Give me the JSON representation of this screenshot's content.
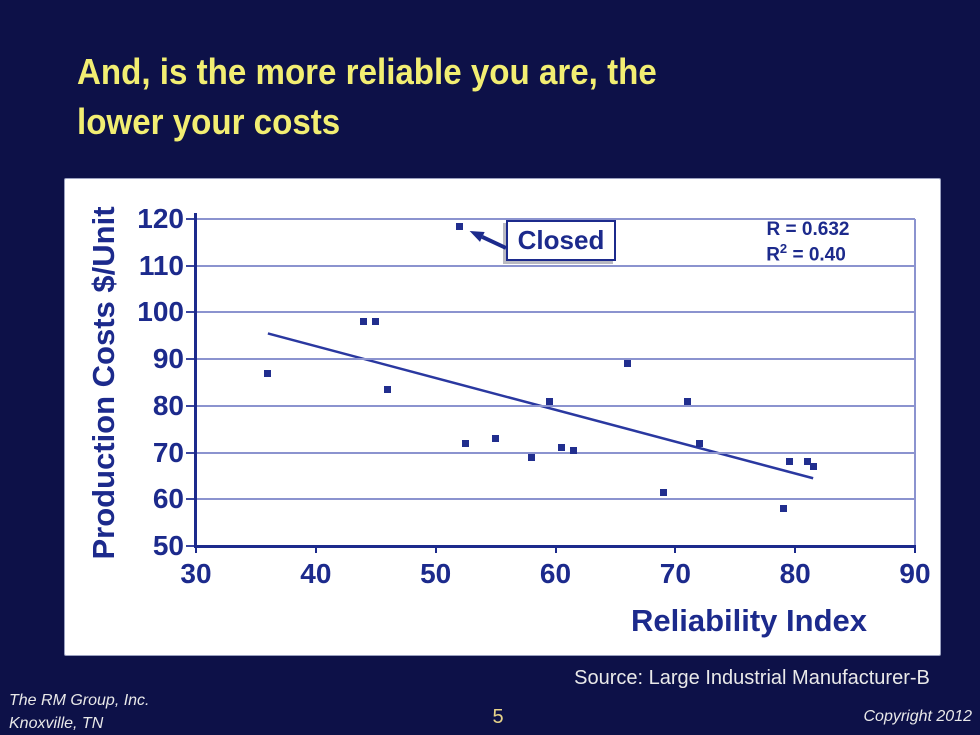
{
  "slide": {
    "title_line1": "And, is the more reliable you are, the",
    "title_line2": "lower your costs",
    "source_note": "Source: Large Industrial Manufacturer-B",
    "footer_left_line1": "The RM Group, Inc.",
    "footer_left_line2": "Knoxville, TN",
    "page_number": "5",
    "footer_right": "Copyright 2012"
  },
  "colors": {
    "background": "#0d1148",
    "title_yellow": "#f2ee72",
    "chart_navy": "#1c2a8c",
    "point_navy": "#212e8e",
    "gridline": "#8b93cf",
    "footer_white": "#e9e9e9",
    "page_number_gold": "#e7d489"
  },
  "chart_data": {
    "type": "scatter",
    "title": "",
    "xlabel": "Reliability Index",
    "ylabel": "Production Costs $/Unit",
    "xlim": [
      30,
      90
    ],
    "ylim": [
      50,
      120
    ],
    "x_ticks": [
      30,
      40,
      50,
      60,
      70,
      80,
      90
    ],
    "y_ticks": [
      50,
      60,
      70,
      80,
      90,
      100,
      110,
      120
    ],
    "grid": true,
    "legend": false,
    "points": [
      [
        36,
        87
      ],
      [
        44,
        98
      ],
      [
        45,
        98
      ],
      [
        46,
        83.5
      ],
      [
        52,
        118.5
      ],
      [
        52.5,
        72
      ],
      [
        55,
        73
      ],
      [
        58,
        69
      ],
      [
        59.5,
        81
      ],
      [
        60.5,
        71
      ],
      [
        61.5,
        70.5
      ],
      [
        66,
        89
      ],
      [
        69,
        61.5
      ],
      [
        71,
        81
      ],
      [
        72,
        72
      ],
      [
        79,
        58
      ],
      [
        79.5,
        68
      ],
      [
        81,
        68
      ],
      [
        81.5,
        67
      ]
    ],
    "trend": {
      "x1": 36,
      "y1": 95.5,
      "x2": 81.5,
      "y2": 64.5
    },
    "annotation": {
      "label": "Closed",
      "point": [
        52,
        118.5
      ]
    },
    "r_label": "R = 0.632",
    "r2_base": "R",
    "r2_sup": "2",
    "r2_rest": " = 0.40"
  }
}
